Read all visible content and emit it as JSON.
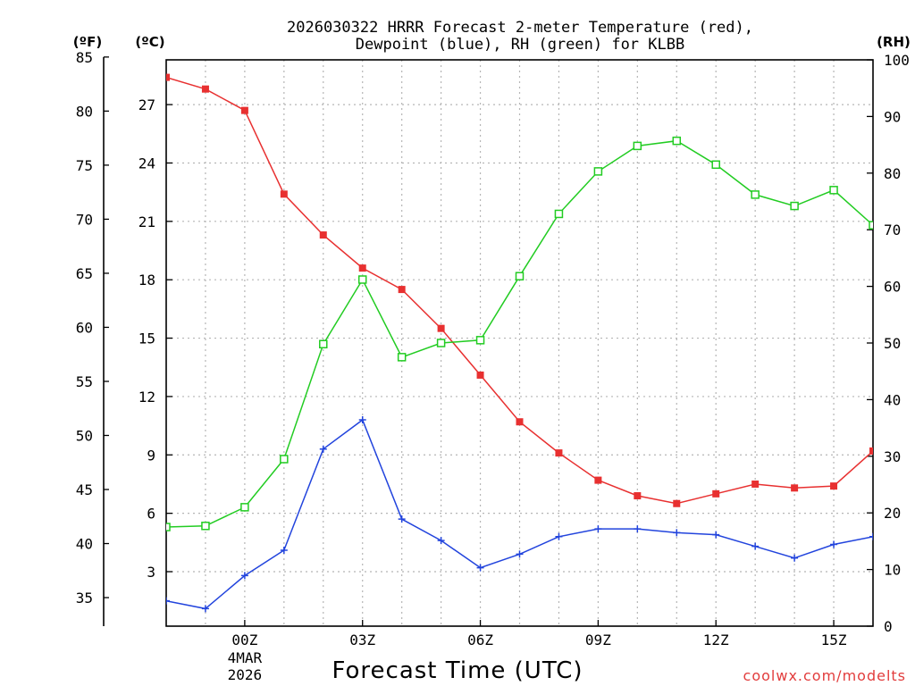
{
  "chart_data": {
    "type": "line",
    "title_line1": "2026030322 HRRR Forecast 2-meter Temperature (red),",
    "title_line2": "Dewpoint (blue), RH (green) for KLBB",
    "xlabel": "Forecast Time (UTC)",
    "credit": "coolwx.com/modelts",
    "unit_f": "(ºF)",
    "unit_c": "(ºC)",
    "unit_rh": "(RH)",
    "x_hours": [
      -2,
      -1,
      0,
      1,
      2,
      3,
      4,
      5,
      6,
      7,
      8,
      9,
      10,
      11,
      12,
      13,
      14,
      15,
      16
    ],
    "x_range": [
      -2,
      16
    ],
    "x_ticks": [
      {
        "hour": 0,
        "label": "00Z",
        "sub1": "4MAR",
        "sub2": "2026"
      },
      {
        "hour": 3,
        "label": "03Z"
      },
      {
        "hour": 6,
        "label": "06Z"
      },
      {
        "hour": 9,
        "label": "09Z"
      },
      {
        "hour": 12,
        "label": "12Z"
      },
      {
        "hour": 15,
        "label": "15Z"
      }
    ],
    "c_range": [
      0.2,
      29.3
    ],
    "c_ticks": [
      "3",
      "6",
      "9",
      "12",
      "15",
      "18",
      "21",
      "24",
      "27"
    ],
    "f_ticks": [
      "35",
      "40",
      "45",
      "50",
      "55",
      "60",
      "65",
      "70",
      "75",
      "80",
      "85"
    ],
    "rh_range": [
      0,
      100
    ],
    "rh_ticks": [
      "0",
      "10",
      "20",
      "30",
      "40",
      "50",
      "60",
      "70",
      "80",
      "90",
      "100"
    ],
    "series": [
      {
        "name": "Temperature",
        "axis": "c",
        "color": "#e83030",
        "marker": "square-filled",
        "values": [
          28.4,
          27.8,
          26.7,
          22.4,
          20.3,
          18.6,
          17.5,
          15.5,
          13.1,
          10.7,
          9.1,
          7.7,
          6.9,
          6.5,
          7.0,
          7.5,
          7.3,
          7.4,
          9.2
        ]
      },
      {
        "name": "Dewpoint",
        "axis": "c",
        "color": "#2244dd",
        "marker": "plus",
        "values": [
          1.5,
          1.1,
          2.8,
          4.1,
          9.3,
          10.8,
          5.7,
          4.6,
          3.2,
          3.9,
          4.8,
          5.2,
          5.2,
          5.0,
          4.9,
          4.3,
          3.7,
          4.4,
          4.8
        ]
      },
      {
        "name": "RH",
        "axis": "rh",
        "color": "#22cc22",
        "marker": "square-open",
        "values": [
          17.5,
          17.7,
          21.0,
          29.5,
          49.8,
          61.2,
          47.5,
          50.0,
          50.5,
          61.8,
          72.8,
          80.3,
          84.8,
          85.7,
          81.5,
          76.2,
          74.2,
          77.0,
          70.8
        ]
      }
    ]
  }
}
